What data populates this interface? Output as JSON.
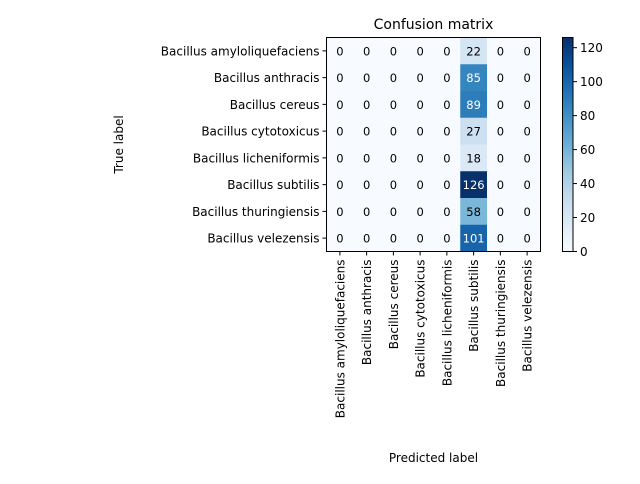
{
  "chart_data": {
    "type": "heatmap",
    "title": "Confusion matrix",
    "xlabel": "Predicted label",
    "ylabel": "True label",
    "rows": [
      "Bacillus amyloliquefaciens",
      "Bacillus anthracis",
      "Bacillus cereus",
      "Bacillus cytotoxicus",
      "Bacillus licheniformis",
      "Bacillus subtilis",
      "Bacillus thuringiensis",
      "Bacillus velezensis"
    ],
    "columns": [
      "Bacillus amyloliquefaciens",
      "Bacillus anthracis",
      "Bacillus cereus",
      "Bacillus cytotoxicus",
      "Bacillus licheniformis",
      "Bacillus subtilis",
      "Bacillus thuringiensis",
      "Bacillus velezensis"
    ],
    "values": [
      [
        0,
        0,
        0,
        0,
        0,
        22,
        0,
        0
      ],
      [
        0,
        0,
        0,
        0,
        0,
        85,
        0,
        0
      ],
      [
        0,
        0,
        0,
        0,
        0,
        89,
        0,
        0
      ],
      [
        0,
        0,
        0,
        0,
        0,
        27,
        0,
        0
      ],
      [
        0,
        0,
        0,
        0,
        0,
        18,
        0,
        0
      ],
      [
        0,
        0,
        0,
        0,
        0,
        126,
        0,
        0
      ],
      [
        0,
        0,
        0,
        0,
        0,
        58,
        0,
        0
      ],
      [
        0,
        0,
        0,
        0,
        0,
        101,
        0,
        0
      ]
    ],
    "colormap": "Blues",
    "colorbar": {
      "range": [
        0,
        126
      ],
      "ticks": [
        0,
        20,
        40,
        60,
        80,
        100,
        120
      ]
    },
    "grid": false
  }
}
